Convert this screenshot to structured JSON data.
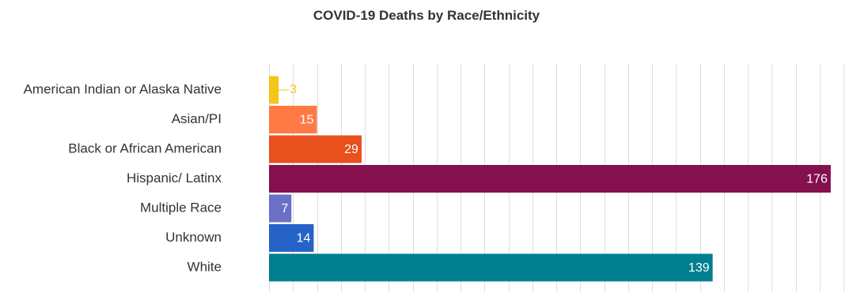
{
  "chart_data": {
    "type": "bar",
    "orientation": "horizontal",
    "title": "COVID-19 Deaths by Race/Ethnicity",
    "xlabel": "",
    "ylabel": "",
    "xlim": [
      0,
      180
    ],
    "grid": true,
    "legend": "none",
    "categories": [
      "American Indian or Alaska Native",
      "Asian/PI",
      "Black or African American",
      "Hispanic/ Latinx",
      "Multiple Race",
      "Unknown",
      "White"
    ],
    "values": [
      3,
      15,
      29,
      176,
      7,
      14,
      139
    ],
    "data_labels": [
      "3",
      "15",
      "29",
      "176",
      "7",
      "14",
      "139"
    ],
    "colors": [
      "#f5c518",
      "#ff7a45",
      "#e8501e",
      "#84104e",
      "#6b6fc6",
      "#2563c7",
      "#007f8e"
    ],
    "label_color_outside": "#f5c518",
    "label_color_inside": "#ffffff",
    "grid_color": "#dddddd",
    "text_color": "#333333"
  }
}
